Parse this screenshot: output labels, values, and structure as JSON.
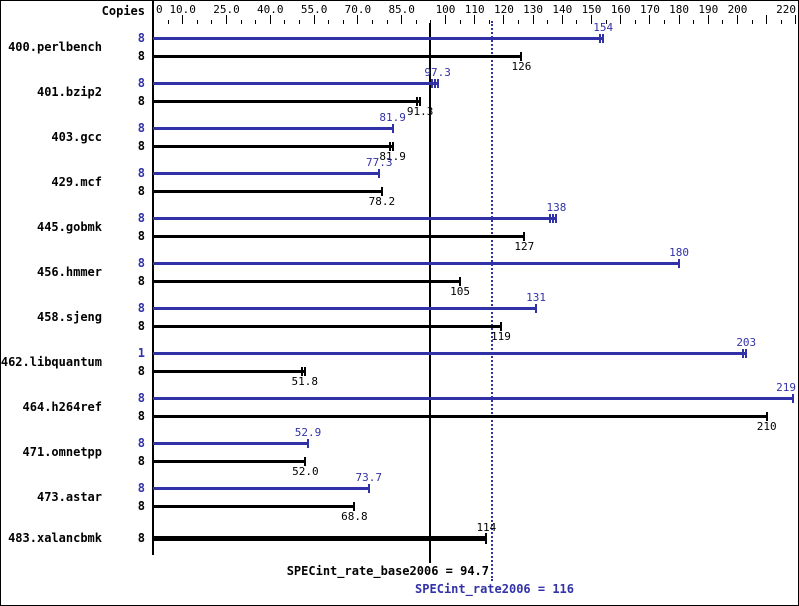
{
  "header": {
    "copies_label": "Copies"
  },
  "colors": {
    "peak_blue": "#3232a8",
    "base_black": "#000000",
    "background": "#ffffff",
    "frame": "#000000"
  },
  "chart_data": {
    "type": "bar",
    "orientation": "horizontal",
    "title": "",
    "xlabel": "",
    "ylabel": "Copies",
    "axis": {
      "min": 0,
      "max": 222,
      "minor_tick_step": 5,
      "labeled_ticks": [
        {
          "v": 0,
          "label": "0"
        },
        {
          "v": 10,
          "label": "10.0"
        },
        {
          "v": 25,
          "label": "25.0"
        },
        {
          "v": 40,
          "label": "40.0"
        },
        {
          "v": 55,
          "label": "55.0"
        },
        {
          "v": 70,
          "label": "70.0"
        },
        {
          "v": 85,
          "label": "85.0"
        },
        {
          "v": 100,
          "label": "100"
        },
        {
          "v": 110,
          "label": "110"
        },
        {
          "v": 120,
          "label": "120"
        },
        {
          "v": 130,
          "label": "130"
        },
        {
          "v": 140,
          "label": "140"
        },
        {
          "v": 150,
          "label": "150"
        },
        {
          "v": 160,
          "label": "160"
        },
        {
          "v": 170,
          "label": "170"
        },
        {
          "v": 180,
          "label": "180"
        },
        {
          "v": 190,
          "label": "190"
        },
        {
          "v": 200,
          "label": "200"
        },
        {
          "v": 220,
          "label": "220"
        }
      ],
      "unlabeled_major_ticks": [
        210
      ]
    },
    "series": [
      {
        "name": "peak",
        "color": "#3232a8"
      },
      {
        "name": "base",
        "color": "#000000"
      }
    ],
    "benchmarks": [
      {
        "name": "400.perlbench",
        "peak": {
          "copies": "8",
          "value": 154,
          "display": "154",
          "end_ticks": 2
        },
        "base": {
          "copies": "8",
          "value": 126,
          "display": "126",
          "end_ticks": 1
        }
      },
      {
        "name": "401.bzip2",
        "peak": {
          "copies": "8",
          "value": 97.3,
          "display": "97.3",
          "end_ticks": 3
        },
        "base": {
          "copies": "8",
          "value": 91.3,
          "display": "91.3",
          "end_ticks": 2
        }
      },
      {
        "name": "403.gcc",
        "peak": {
          "copies": "8",
          "value": 81.9,
          "display": "81.9",
          "end_ticks": 1
        },
        "base": {
          "copies": "8",
          "value": 81.9,
          "display": "81.9",
          "end_ticks": 2
        }
      },
      {
        "name": "429.mcf",
        "peak": {
          "copies": "8",
          "value": 77.3,
          "display": "77.3",
          "end_ticks": 1
        },
        "base": {
          "copies": "8",
          "value": 78.2,
          "display": "78.2",
          "end_ticks": 1
        }
      },
      {
        "name": "445.gobmk",
        "peak": {
          "copies": "8",
          "value": 138,
          "display": "138",
          "end_ticks": 3
        },
        "base": {
          "copies": "8",
          "value": 127,
          "display": "127",
          "end_ticks": 1
        }
      },
      {
        "name": "456.hmmer",
        "peak": {
          "copies": "8",
          "value": 180,
          "display": "180",
          "end_ticks": 1
        },
        "base": {
          "copies": "8",
          "value": 105,
          "display": "105",
          "end_ticks": 1
        }
      },
      {
        "name": "458.sjeng",
        "peak": {
          "copies": "8",
          "value": 131,
          "display": "131",
          "end_ticks": 1
        },
        "base": {
          "copies": "8",
          "value": 119,
          "display": "119",
          "end_ticks": 1
        }
      },
      {
        "name": "462.libquantum",
        "peak": {
          "copies": "1",
          "value": 203,
          "display": "203",
          "end_ticks": 2
        },
        "base": {
          "copies": "8",
          "value": 51.8,
          "display": "51.8",
          "end_ticks": 2
        }
      },
      {
        "name": "464.h264ref",
        "peak": {
          "copies": "8",
          "value": 219,
          "display": "219",
          "end_ticks": 1
        },
        "base": {
          "copies": "8",
          "value": 210,
          "display": "210",
          "end_ticks": 1
        }
      },
      {
        "name": "471.omnetpp",
        "peak": {
          "copies": "8",
          "value": 52.9,
          "display": "52.9",
          "end_ticks": 1
        },
        "base": {
          "copies": "8",
          "value": 52.0,
          "display": "52.0",
          "end_ticks": 1
        }
      },
      {
        "name": "473.astar",
        "peak": {
          "copies": "8",
          "value": 73.7,
          "display": "73.7",
          "end_ticks": 1
        },
        "base": {
          "copies": "8",
          "value": 68.8,
          "display": "68.8",
          "end_ticks": 1
        }
      },
      {
        "name": "483.xalancbmk",
        "peak": null,
        "base": {
          "copies": "8",
          "value": 114,
          "display": "114",
          "end_ticks": 1,
          "bold": true,
          "label_above": true
        }
      }
    ],
    "reference_lines": [
      {
        "metric": "SPECint_rate_base2006",
        "value": 94.7,
        "label": "SPECint_rate_base2006 = 94.7",
        "style": "solid",
        "color": "#000000"
      },
      {
        "metric": "SPECint_rate2006",
        "value": 116,
        "label": "SPECint_rate2006 = 116",
        "style": "dotted",
        "color": "#3232a8"
      }
    ]
  }
}
